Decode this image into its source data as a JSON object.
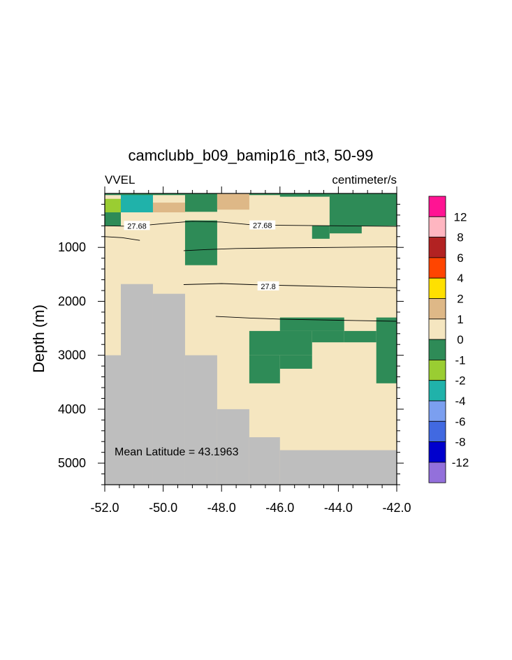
{
  "chart_data": {
    "type": "heatmap",
    "title": "camclubb_b09_bamip16_nt3, 50-99",
    "left_label": "VVEL",
    "right_label": "centimeter/s",
    "xlabel": "",
    "ylabel": "Depth (m)",
    "annotation": "Mean Latitude = 43.1963",
    "xlim": [
      -52.0,
      -42.0
    ],
    "ylim": [
      0,
      5400
    ],
    "y_reversed": true,
    "x_ticks": [
      -52.0,
      -50.0,
      -48.0,
      -46.0,
      -44.0,
      -42.0
    ],
    "x_tick_labels": [
      "-52.0",
      "-50.0",
      "-48.0",
      "-46.0",
      "-44.0",
      "-42.0"
    ],
    "y_ticks": [
      1000,
      2000,
      3000,
      4000,
      5000
    ],
    "y_tick_labels": [
      "1000",
      "2000",
      "3000",
      "4000",
      "5000"
    ],
    "background_level": "0 to 1",
    "colorbar": {
      "labels": [
        "12",
        "8",
        "6",
        "4",
        "2",
        "1",
        "0",
        "-1",
        "-2",
        "-4",
        "-6",
        "-8",
        "-12"
      ],
      "colors": [
        "#ff1493",
        "#ffb6c1",
        "#b22222",
        "#ff4500",
        "#ffe000",
        "#deb887",
        "#f5e6c0",
        "#2e8b57",
        "#9acd32",
        "#20b2aa",
        "#7b9ff0",
        "#4169e1",
        "#0000cd",
        "#9370db"
      ]
    },
    "cells": [
      {
        "x": [
          -52.0,
          -51.45
        ],
        "depth": [
          100,
          350
        ],
        "level": "-2 to -1"
      },
      {
        "x": [
          -52.0,
          -51.45
        ],
        "depth": [
          350,
          600
        ],
        "level": "-1 to 0"
      },
      {
        "x": [
          -51.45,
          -50.35
        ],
        "depth": [
          0,
          350
        ],
        "level": "-4 to -2"
      },
      {
        "x": [
          -52.0,
          -42.0
        ],
        "depth": [
          0,
          30
        ],
        "level": "-1 to 0"
      },
      {
        "x": [
          -50.35,
          -49.25
        ],
        "depth": [
          170,
          350
        ],
        "level": "1 to 2"
      },
      {
        "x": [
          -49.25,
          -48.15
        ],
        "depth": [
          0,
          340
        ],
        "level": "-1 to 0"
      },
      {
        "x": [
          -48.15,
          -47.05
        ],
        "depth": [
          0,
          300
        ],
        "level": "1 to 2"
      },
      {
        "x": [
          -46.0,
          -44.3
        ],
        "depth": [
          0,
          60
        ],
        "level": "-1 to 0"
      },
      {
        "x": [
          -44.3,
          -42.0
        ],
        "depth": [
          0,
          600
        ],
        "level": "-1 to 0"
      },
      {
        "x": [
          -44.9,
          -44.3
        ],
        "depth": [
          600,
          840
        ],
        "level": "-1 to 0"
      },
      {
        "x": [
          -44.3,
          -43.2
        ],
        "depth": [
          600,
          740
        ],
        "level": "-1 to 0"
      },
      {
        "x": [
          -49.25,
          -48.15
        ],
        "depth": [
          500,
          1330
        ],
        "level": "-1 to 0"
      },
      {
        "x": [
          -46.0,
          -43.8
        ],
        "depth": [
          2300,
          2550
        ],
        "level": "-1 to 0"
      },
      {
        "x": [
          -47.05,
          -44.9
        ],
        "depth": [
          2550,
          3000
        ],
        "level": "-1 to 0"
      },
      {
        "x": [
          -47.05,
          -46.0
        ],
        "depth": [
          3000,
          3520
        ],
        "level": "-1 to 0"
      },
      {
        "x": [
          -46.0,
          -44.9
        ],
        "depth": [
          3000,
          3250
        ],
        "level": "-1 to 0"
      },
      {
        "x": [
          -44.9,
          -43.8
        ],
        "depth": [
          2550,
          2760
        ],
        "level": "-1 to 0"
      },
      {
        "x": [
          -43.8,
          -42.7
        ],
        "depth": [
          2550,
          2760
        ],
        "level": "-1 to 0"
      },
      {
        "x": [
          -42.7,
          -42.0
        ],
        "depth": [
          2300,
          3520
        ],
        "level": "-1 to 0"
      }
    ],
    "bathymetry": [
      {
        "x": [
          -52.0,
          -51.45
        ],
        "depth_top": 3000
      },
      {
        "x": [
          -51.45,
          -50.35
        ],
        "depth_top": 1680
      },
      {
        "x": [
          -50.35,
          -49.25
        ],
        "depth_top": 1860
      },
      {
        "x": [
          -49.25,
          -48.15
        ],
        "depth_top": 3000
      },
      {
        "x": [
          -48.15,
          -47.05
        ],
        "depth_top": 4000
      },
      {
        "x": [
          -47.05,
          -46.0
        ],
        "depth_top": 4520
      },
      {
        "x": [
          -46.0,
          -42.0
        ],
        "depth_top": 4760
      }
    ],
    "contours": [
      {
        "label": "27.68",
        "label_at": [
          -50.9,
          600
        ],
        "points": [
          [
            -52.0,
            600
          ],
          [
            -51.0,
            610
          ],
          [
            -50.0,
            560
          ],
          [
            -49.0,
            515
          ],
          [
            -48.0,
            530
          ],
          [
            -47.0,
            580
          ],
          [
            -46.0,
            590
          ],
          [
            -44.0,
            600
          ],
          [
            -42.0,
            610
          ]
        ]
      },
      {
        "label": "27.68",
        "label_at": [
          -46.6,
          590
        ],
        "points": []
      },
      {
        "label": "",
        "points": [
          [
            -52.0,
            800
          ],
          [
            -51.4,
            820
          ],
          [
            -50.8,
            870
          ]
        ]
      },
      {
        "label": "",
        "points": [
          [
            -49.3,
            1060
          ],
          [
            -48.5,
            1040
          ],
          [
            -47.5,
            1020
          ],
          [
            -46.0,
            1010
          ],
          [
            -44.0,
            1000
          ],
          [
            -42.0,
            990
          ]
        ]
      },
      {
        "label": "27.8",
        "label_at": [
          -46.4,
          1720
        ],
        "points": [
          [
            -49.3,
            1690
          ],
          [
            -48.0,
            1670
          ],
          [
            -47.0,
            1690
          ],
          [
            -45.5,
            1710
          ],
          [
            -44.0,
            1730
          ],
          [
            -42.0,
            1750
          ]
        ]
      },
      {
        "label": "",
        "points": [
          [
            -48.2,
            2280
          ],
          [
            -47.0,
            2310
          ],
          [
            -46.0,
            2330
          ],
          [
            -44.0,
            2350
          ],
          [
            -42.0,
            2370
          ]
        ]
      }
    ]
  }
}
